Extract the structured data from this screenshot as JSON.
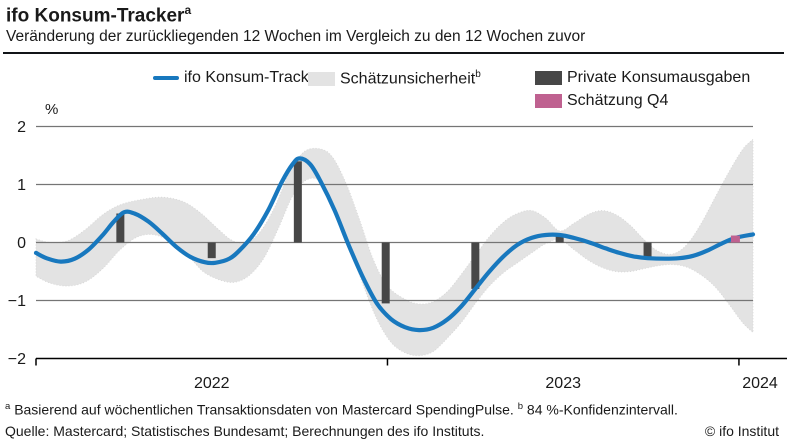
{
  "header": {
    "title": "ifo Konsum-Tracker",
    "title_sup": "a",
    "subtitle": "Veränderung der zurückliegenden 12 Wochen im Vergleich zu den 12 Wochen zuvor"
  },
  "legend": {
    "tracker_label": "ifo Konsum-Tracker",
    "band_label": "Schätzunsicherheit",
    "band_sup": "b",
    "bars_label": "Private Konsumausgaben",
    "estimate_label": "Schätzung Q4"
  },
  "colors": {
    "line": "#1878be",
    "band": "#e3e3e3",
    "band_edge": "#d8d8d8",
    "bars": "#474747",
    "estimate": "#bf6190",
    "grid": "#757575",
    "axis": "#000000",
    "text": "#1a1a1a"
  },
  "chart_data": {
    "type": "line",
    "title": "ifo Konsum-Tracker",
    "subtitle": "Veränderung der zurückliegenden 12 Wochen im Vergleich zu den 12 Wochen zuvor",
    "ylabel": "%",
    "ylim": [
      -2,
      2
    ],
    "y_ticks": [
      2,
      1,
      0,
      -1,
      -2
    ],
    "grid_ticks": [
      2,
      1,
      0,
      -1
    ],
    "x_axis": {
      "data_start": 2022.0,
      "data_end": 2024.04,
      "tick_years": [
        2022,
        2023,
        2024
      ],
      "year_labels": [
        {
          "label": "2022",
          "x": 2022.5
        },
        {
          "label": "2023",
          "x": 2023.5
        },
        {
          "label": "2024",
          "x": 2024.06
        }
      ]
    },
    "legend_position": "top",
    "series": [
      {
        "name": "ifo Konsum-Tracker",
        "type": "line",
        "points": [
          [
            2022.0,
            -0.18
          ],
          [
            2022.03,
            -0.27
          ],
          [
            2022.07,
            -0.33
          ],
          [
            2022.11,
            -0.28
          ],
          [
            2022.15,
            -0.12
          ],
          [
            2022.19,
            0.13
          ],
          [
            2022.22,
            0.35
          ],
          [
            2022.25,
            0.52
          ],
          [
            2022.28,
            0.5
          ],
          [
            2022.32,
            0.36
          ],
          [
            2022.36,
            0.15
          ],
          [
            2022.4,
            -0.08
          ],
          [
            2022.44,
            -0.25
          ],
          [
            2022.48,
            -0.34
          ],
          [
            2022.51,
            -0.35
          ],
          [
            2022.55,
            -0.28
          ],
          [
            2022.58,
            -0.13
          ],
          [
            2022.62,
            0.15
          ],
          [
            2022.66,
            0.55
          ],
          [
            2022.7,
            1.05
          ],
          [
            2022.73,
            1.35
          ],
          [
            2022.75,
            1.45
          ],
          [
            2022.78,
            1.35
          ],
          [
            2022.81,
            1.05
          ],
          [
            2022.85,
            0.55
          ],
          [
            2022.89,
            -0.05
          ],
          [
            2022.93,
            -0.6
          ],
          [
            2022.97,
            -1.05
          ],
          [
            2023.01,
            -1.32
          ],
          [
            2023.05,
            -1.46
          ],
          [
            2023.09,
            -1.51
          ],
          [
            2023.13,
            -1.47
          ],
          [
            2023.17,
            -1.33
          ],
          [
            2023.21,
            -1.1
          ],
          [
            2023.25,
            -0.8
          ],
          [
            2023.29,
            -0.5
          ],
          [
            2023.33,
            -0.24
          ],
          [
            2023.37,
            -0.04
          ],
          [
            2023.41,
            0.08
          ],
          [
            2023.45,
            0.13
          ],
          [
            2023.49,
            0.13
          ],
          [
            2023.53,
            0.08
          ],
          [
            2023.58,
            -0.01
          ],
          [
            2023.62,
            -0.1
          ],
          [
            2023.66,
            -0.18
          ],
          [
            2023.7,
            -0.24
          ],
          [
            2023.74,
            -0.27
          ],
          [
            2023.79,
            -0.28
          ],
          [
            2023.83,
            -0.27
          ],
          [
            2023.87,
            -0.23
          ],
          [
            2023.91,
            -0.14
          ],
          [
            2023.95,
            -0.02
          ],
          [
            2023.99,
            0.08
          ],
          [
            2024.04,
            0.14
          ]
        ]
      },
      {
        "name": "Schätzunsicherheit (84 %-Konfidenzintervall)",
        "type": "band",
        "upper": [
          [
            2022.0,
            0.06
          ],
          [
            2022.04,
            0.0
          ],
          [
            2022.09,
            0.03
          ],
          [
            2022.14,
            0.22
          ],
          [
            2022.19,
            0.48
          ],
          [
            2022.24,
            0.65
          ],
          [
            2022.3,
            0.74
          ],
          [
            2022.36,
            0.78
          ],
          [
            2022.42,
            0.7
          ],
          [
            2022.47,
            0.5
          ],
          [
            2022.52,
            0.22
          ],
          [
            2022.56,
            0.03
          ],
          [
            2022.6,
            0.0
          ],
          [
            2022.64,
            0.2
          ],
          [
            2022.68,
            0.62
          ],
          [
            2022.72,
            1.2
          ],
          [
            2022.76,
            1.55
          ],
          [
            2022.8,
            1.62
          ],
          [
            2022.84,
            1.5
          ],
          [
            2022.88,
            1.05
          ],
          [
            2022.92,
            0.4
          ],
          [
            2022.96,
            -0.3
          ],
          [
            2023.0,
            -0.75
          ],
          [
            2023.05,
            -0.98
          ],
          [
            2023.09,
            -1.06
          ],
          [
            2023.13,
            -1.02
          ],
          [
            2023.17,
            -0.85
          ],
          [
            2023.21,
            -0.55
          ],
          [
            2023.25,
            -0.22
          ],
          [
            2023.29,
            0.1
          ],
          [
            2023.33,
            0.35
          ],
          [
            2023.37,
            0.5
          ],
          [
            2023.41,
            0.55
          ],
          [
            2023.45,
            0.42
          ],
          [
            2023.49,
            0.2
          ],
          [
            2023.53,
            0.33
          ],
          [
            2023.57,
            0.48
          ],
          [
            2023.61,
            0.55
          ],
          [
            2023.65,
            0.48
          ],
          [
            2023.69,
            0.3
          ],
          [
            2023.73,
            0.05
          ],
          [
            2023.77,
            -0.15
          ],
          [
            2023.81,
            -0.2
          ],
          [
            2023.85,
            -0.05
          ],
          [
            2023.89,
            0.3
          ],
          [
            2023.93,
            0.75
          ],
          [
            2023.97,
            1.2
          ],
          [
            2024.01,
            1.6
          ],
          [
            2024.04,
            1.78
          ]
        ],
        "lower": [
          [
            2022.0,
            -0.58
          ],
          [
            2022.04,
            -0.7
          ],
          [
            2022.09,
            -0.75
          ],
          [
            2022.14,
            -0.68
          ],
          [
            2022.19,
            -0.45
          ],
          [
            2022.24,
            -0.12
          ],
          [
            2022.29,
            0.1
          ],
          [
            2022.34,
            0.13
          ],
          [
            2022.39,
            -0.02
          ],
          [
            2022.44,
            -0.28
          ],
          [
            2022.48,
            -0.52
          ],
          [
            2022.53,
            -0.66
          ],
          [
            2022.57,
            -0.68
          ],
          [
            2022.61,
            -0.55
          ],
          [
            2022.65,
            -0.25
          ],
          [
            2022.69,
            0.25
          ],
          [
            2022.73,
            0.8
          ],
          [
            2022.77,
            1.08
          ],
          [
            2022.81,
            1.05
          ],
          [
            2022.85,
            0.62
          ],
          [
            2022.89,
            -0.02
          ],
          [
            2022.93,
            -0.72
          ],
          [
            2022.97,
            -1.32
          ],
          [
            2023.01,
            -1.72
          ],
          [
            2023.05,
            -1.9
          ],
          [
            2023.09,
            -1.95
          ],
          [
            2023.13,
            -1.88
          ],
          [
            2023.17,
            -1.65
          ],
          [
            2023.21,
            -1.38
          ],
          [
            2023.25,
            -1.05
          ],
          [
            2023.29,
            -0.75
          ],
          [
            2023.33,
            -0.52
          ],
          [
            2023.37,
            -0.35
          ],
          [
            2023.41,
            -0.18
          ],
          [
            2023.45,
            -0.02
          ],
          [
            2023.49,
            0.05
          ],
          [
            2023.53,
            -0.12
          ],
          [
            2023.57,
            -0.3
          ],
          [
            2023.61,
            -0.43
          ],
          [
            2023.65,
            -0.5
          ],
          [
            2023.69,
            -0.5
          ],
          [
            2023.73,
            -0.45
          ],
          [
            2023.77,
            -0.4
          ],
          [
            2023.81,
            -0.38
          ],
          [
            2023.85,
            -0.42
          ],
          [
            2023.89,
            -0.55
          ],
          [
            2023.93,
            -0.75
          ],
          [
            2023.97,
            -1.05
          ],
          [
            2024.01,
            -1.38
          ],
          [
            2024.04,
            -1.55
          ]
        ]
      },
      {
        "name": "Private Konsumausgaben",
        "type": "bar",
        "points": [
          [
            2022.24,
            0.5
          ],
          [
            2022.5,
            -0.27
          ],
          [
            2022.745,
            1.4
          ],
          [
            2022.995,
            -1.05
          ],
          [
            2023.25,
            -0.8
          ],
          [
            2023.49,
            0.15
          ],
          [
            2023.74,
            -0.25
          ]
        ]
      },
      {
        "name": "Schätzung Q4",
        "type": "estimate-bar",
        "points": [
          [
            2023.99,
            0.12
          ]
        ]
      }
    ]
  },
  "footnotes": {
    "note_a_sup": "a",
    "note_a": "Basierend auf wöchentlichen Transaktionsdaten von Mastercard SpendingPulse.",
    "note_b_sup": "b",
    "note_b": "84 %-Konfidenzintervall.",
    "source": "Quelle: Mastercard; Statistisches Bundesamt; Berechnungen des ifo Instituts.",
    "copyright": "© ifo Institut"
  }
}
